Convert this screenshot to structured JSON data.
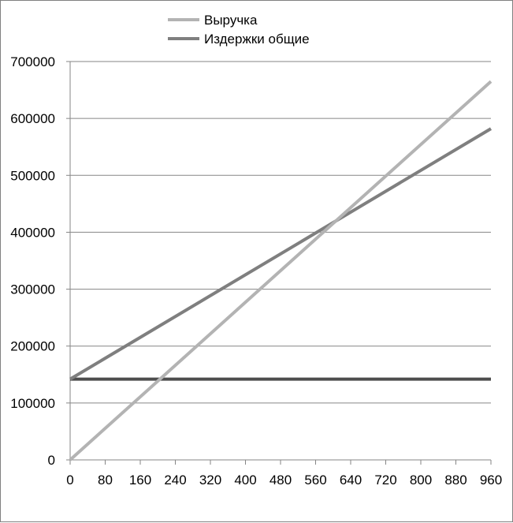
{
  "chart_data": {
    "type": "line",
    "title": "",
    "xlabel": "",
    "ylabel": "",
    "xlim": [
      0,
      960
    ],
    "ylim": [
      0,
      700000
    ],
    "x_ticks": [
      0,
      80,
      160,
      240,
      320,
      400,
      480,
      560,
      640,
      720,
      800,
      880,
      960
    ],
    "y_ticks": [
      0,
      100000,
      200000,
      300000,
      400000,
      500000,
      600000,
      700000
    ],
    "grid": {
      "horizontal": true,
      "vertical": false
    },
    "legend_position": "top",
    "series": [
      {
        "name": "Выручка",
        "color": "#b3b3b3",
        "x": [
          0,
          960
        ],
        "y": [
          0,
          665000
        ]
      },
      {
        "name": "Издержки общие",
        "color": "#7f7f7f",
        "x": [
          0,
          960
        ],
        "y": [
          142000,
          582000
        ]
      },
      {
        "name": "",
        "color": "#4d4d4d",
        "x": [
          0,
          960
        ],
        "y": [
          142000,
          142000
        ]
      }
    ]
  }
}
